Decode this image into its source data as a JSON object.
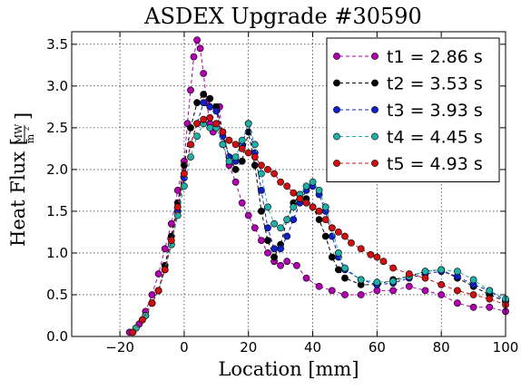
{
  "chart_data": {
    "type": "line",
    "title": "ASDEX Upgrade #30590",
    "xlabel": "Location [mm]",
    "ylabel": {
      "prefix": "Heat Flux",
      "unit_num": "MW",
      "unit_den": "m",
      "unit_den_exp": "2"
    },
    "xlim": [
      -35,
      100
    ],
    "ylim": [
      0.0,
      3.65
    ],
    "xticks": [
      -20,
      0,
      20,
      40,
      60,
      80,
      100
    ],
    "xtick_labels": [
      "−20",
      "0",
      "20",
      "40",
      "60",
      "80",
      "100"
    ],
    "yticks": [
      0.0,
      0.5,
      1.0,
      1.5,
      2.0,
      2.5,
      3.0,
      3.5
    ],
    "ytick_labels": [
      "0.0",
      "0.5",
      "1.0",
      "1.5",
      "2.0",
      "2.5",
      "3.0",
      "3.5"
    ],
    "grid": true,
    "legend_position": "top-right",
    "series": [
      {
        "name": "t1 = 2.86 s",
        "color": "#b000b0",
        "x": [
          -17,
          -14,
          -12,
          -10,
          -8,
          -6,
          -4,
          -2,
          0,
          1,
          2,
          3,
          4,
          5,
          6,
          7,
          8,
          9,
          10,
          11,
          12,
          14,
          16,
          18,
          20,
          22,
          24,
          26,
          28,
          30,
          32,
          35,
          38,
          42,
          46,
          50,
          55,
          60,
          65,
          70,
          75,
          80,
          85,
          90,
          95,
          100
        ],
        "y": [
          0.05,
          0.15,
          0.3,
          0.5,
          0.75,
          1.05,
          1.35,
          1.75,
          2.1,
          2.55,
          2.95,
          3.35,
          3.55,
          3.45,
          3.15,
          2.8,
          2.55,
          2.45,
          2.55,
          2.75,
          2.3,
          2.05,
          1.85,
          1.6,
          1.45,
          1.3,
          1.15,
          1.0,
          0.9,
          0.85,
          0.9,
          0.85,
          0.7,
          0.6,
          0.55,
          0.5,
          0.5,
          0.55,
          0.55,
          0.6,
          0.55,
          0.5,
          0.4,
          0.35,
          0.35,
          0.3
        ]
      },
      {
        "name": "t2 = 3.53 s",
        "color": "#000000",
        "x": [
          -15,
          -12,
          -10,
          -8,
          -6,
          -4,
          -2,
          0,
          2,
          4,
          6,
          8,
          10,
          12,
          14,
          16,
          18,
          20,
          22,
          24,
          26,
          28,
          30,
          32,
          34,
          36,
          38,
          40,
          42,
          44,
          46,
          48,
          50,
          55,
          60,
          65,
          70,
          75,
          80,
          85,
          90,
          95,
          100
        ],
        "y": [
          0.1,
          0.25,
          0.4,
          0.55,
          0.85,
          1.2,
          1.6,
          2.05,
          2.5,
          2.8,
          2.9,
          2.85,
          2.75,
          2.45,
          2.15,
          2.0,
          2.1,
          2.45,
          2.05,
          1.5,
          1.15,
          0.95,
          1.1,
          1.4,
          1.6,
          1.7,
          1.65,
          1.55,
          1.4,
          1.2,
          0.95,
          0.8,
          0.7,
          0.62,
          0.62,
          0.68,
          0.72,
          0.78,
          0.8,
          0.7,
          0.6,
          0.5,
          0.42
        ]
      },
      {
        "name": "t3 = 3.93 s",
        "color": "#1020c8",
        "x": [
          -16,
          -13,
          -10,
          -8,
          -6,
          -4,
          -2,
          0,
          2,
          4,
          6,
          8,
          10,
          12,
          14,
          16,
          18,
          20,
          22,
          24,
          26,
          28,
          30,
          32,
          34,
          36,
          38,
          40,
          42,
          44,
          46,
          48,
          50,
          55,
          60,
          65,
          70,
          75,
          80,
          85,
          90,
          95,
          100
        ],
        "y": [
          0.05,
          0.2,
          0.4,
          0.55,
          0.8,
          1.1,
          1.5,
          1.9,
          2.3,
          2.55,
          2.8,
          2.75,
          2.7,
          2.4,
          2.15,
          2.1,
          2.3,
          2.55,
          2.2,
          1.75,
          1.3,
          1.05,
          1.05,
          1.2,
          1.4,
          1.6,
          1.75,
          1.8,
          1.7,
          1.5,
          1.2,
          0.95,
          0.8,
          0.68,
          0.62,
          0.64,
          0.7,
          0.75,
          0.78,
          0.72,
          0.62,
          0.55,
          0.42
        ]
      },
      {
        "name": "t4 = 4.45 s",
        "color": "#20b0a8",
        "x": [
          -15,
          -12,
          -10,
          -8,
          -6,
          -4,
          -2,
          0,
          2,
          4,
          6,
          8,
          10,
          12,
          14,
          16,
          18,
          20,
          22,
          24,
          26,
          28,
          30,
          32,
          34,
          36,
          38,
          40,
          42,
          44,
          46,
          48,
          50,
          55,
          60,
          65,
          70,
          75,
          80,
          85,
          90,
          95,
          100
        ],
        "y": [
          0.1,
          0.25,
          0.4,
          0.55,
          0.8,
          1.1,
          1.45,
          1.8,
          2.15,
          2.4,
          2.55,
          2.5,
          2.5,
          2.3,
          2.1,
          2.15,
          2.35,
          2.55,
          2.3,
          1.95,
          1.55,
          1.35,
          1.3,
          1.4,
          1.55,
          1.7,
          1.8,
          1.85,
          1.75,
          1.55,
          1.3,
          1.0,
          0.82,
          0.68,
          0.65,
          0.66,
          0.72,
          0.78,
          0.8,
          0.78,
          0.68,
          0.55,
          0.45
        ]
      },
      {
        "name": "t5 = 4.93 s",
        "color": "#d01010",
        "x": [
          -16,
          -13,
          -10,
          -8,
          -6,
          -4,
          -2,
          0,
          2,
          4,
          6,
          8,
          10,
          12,
          14,
          16,
          18,
          20,
          22,
          24,
          26,
          28,
          30,
          32,
          34,
          36,
          38,
          40,
          42,
          44,
          46,
          48,
          50,
          52,
          55,
          58,
          60,
          62,
          65,
          70,
          75,
          80,
          85,
          90,
          95,
          100
        ],
        "y": [
          0.05,
          0.2,
          0.4,
          0.55,
          0.8,
          1.15,
          1.55,
          1.95,
          2.3,
          2.55,
          2.6,
          2.62,
          2.55,
          2.45,
          2.35,
          2.3,
          2.25,
          2.2,
          2.15,
          2.05,
          2.0,
          1.95,
          1.85,
          1.8,
          1.72,
          1.65,
          1.6,
          1.55,
          1.5,
          1.4,
          1.3,
          1.25,
          1.2,
          1.12,
          1.05,
          0.98,
          0.95,
          0.9,
          0.82,
          0.75,
          0.7,
          0.62,
          0.55,
          0.5,
          0.45,
          0.38
        ]
      }
    ]
  }
}
